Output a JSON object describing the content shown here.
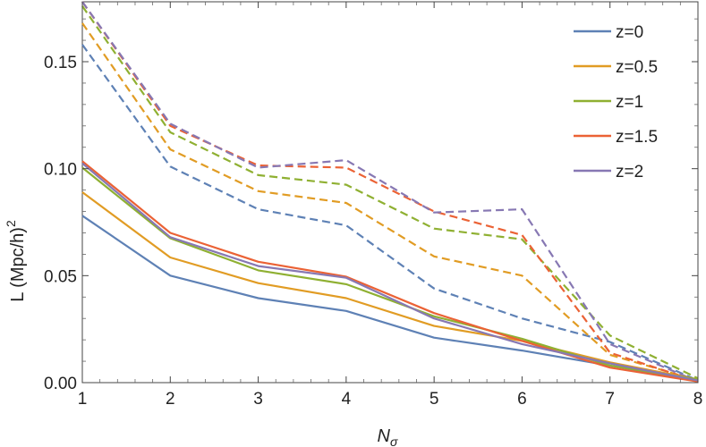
{
  "chart_data": {
    "type": "line",
    "title": "",
    "xlabel": "N",
    "xlabel_sub": "σ",
    "ylabel": "L (Mpc/h)",
    "ylabel_sup": "2",
    "x": [
      1,
      2,
      3,
      4,
      5,
      6,
      7,
      8
    ],
    "xlim": [
      1,
      8
    ],
    "ylim": [
      0,
      0.178
    ],
    "xticks": [
      1,
      2,
      3,
      4,
      5,
      6,
      7,
      8
    ],
    "xtick_labels": [
      "1",
      "2",
      "3",
      "4",
      "5",
      "6",
      "7",
      "8"
    ],
    "yticks": [
      0,
      0.05,
      0.1,
      0.15
    ],
    "ytick_labels": [
      "0.00",
      "0.05",
      "0.10",
      "0.15"
    ],
    "grid": false,
    "legend_position": "top-right",
    "series": [
      {
        "name": "z=0",
        "color": "#5e81b5",
        "style": "solid",
        "values": [
          0.078,
          0.05,
          0.0395,
          0.0335,
          0.021,
          0.015,
          0.008,
          0.001
        ]
      },
      {
        "name": "z=0.5",
        "color": "#e19c24",
        "style": "solid",
        "values": [
          0.089,
          0.0585,
          0.0465,
          0.0395,
          0.0265,
          0.0195,
          0.0095,
          0.0015
        ]
      },
      {
        "name": "z=1",
        "color": "#8fb032",
        "style": "solid",
        "values": [
          0.1005,
          0.0675,
          0.0525,
          0.046,
          0.031,
          0.0205,
          0.008,
          0.0015
        ]
      },
      {
        "name": "z=1.5",
        "color": "#eb6235",
        "style": "solid",
        "values": [
          0.1035,
          0.07,
          0.0565,
          0.0495,
          0.0325,
          0.0195,
          0.007,
          0.0005
        ]
      },
      {
        "name": "z=2",
        "color": "#8778b3",
        "style": "solid",
        "values": [
          0.1025,
          0.068,
          0.0545,
          0.049,
          0.03,
          0.018,
          0.009,
          0.001
        ]
      },
      {
        "name": "",
        "color": "#5e81b5",
        "style": "dashed",
        "values": [
          0.158,
          0.101,
          0.081,
          0.0735,
          0.044,
          0.03,
          0.019,
          0.001
        ]
      },
      {
        "name": "",
        "color": "#e19c24",
        "style": "dashed",
        "values": [
          0.168,
          0.109,
          0.0895,
          0.084,
          0.059,
          0.05,
          0.013,
          0.001
        ]
      },
      {
        "name": "",
        "color": "#8fb032",
        "style": "dashed",
        "values": [
          0.176,
          0.117,
          0.097,
          0.0925,
          0.072,
          0.067,
          0.022,
          0.002
        ]
      },
      {
        "name": "",
        "color": "#eb6235",
        "style": "dashed",
        "values": [
          0.178,
          0.12,
          0.1015,
          0.1005,
          0.08,
          0.069,
          0.014,
          0.0005
        ]
      },
      {
        "name": "",
        "color": "#8778b3",
        "style": "dashed",
        "values": [
          0.178,
          0.121,
          0.1005,
          0.104,
          0.0795,
          0.081,
          0.018,
          0.0005
        ]
      }
    ]
  }
}
